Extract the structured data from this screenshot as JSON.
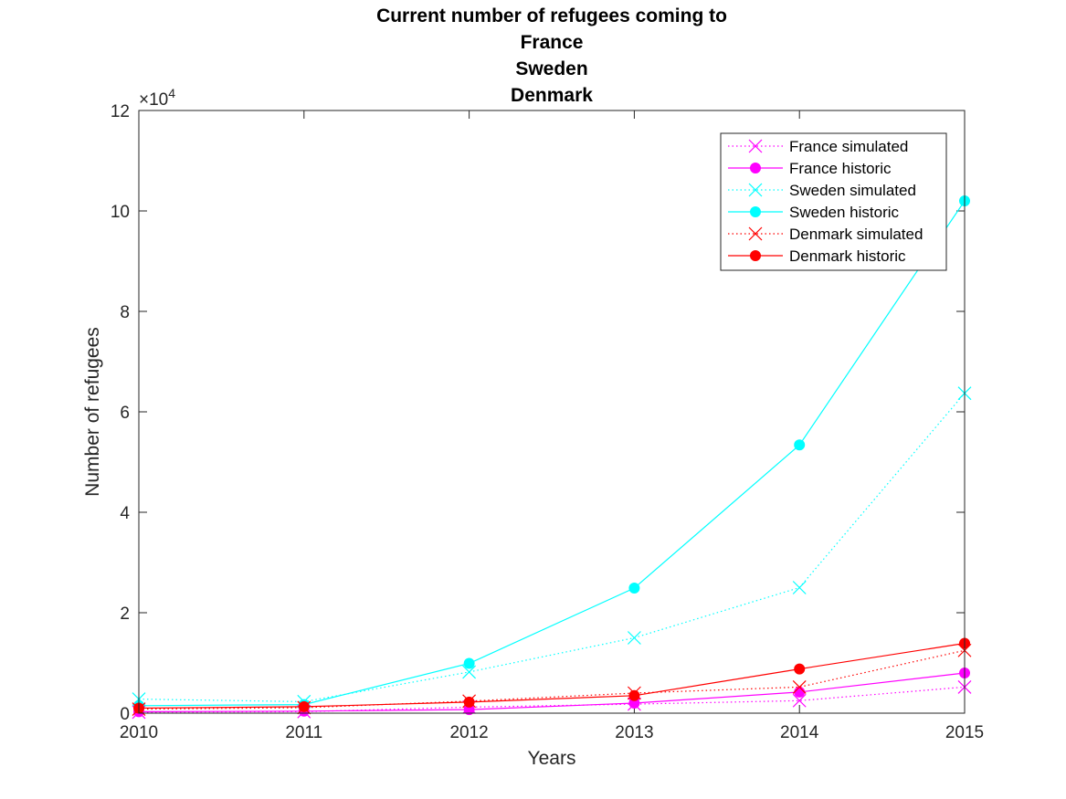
{
  "chart_data": {
    "type": "line",
    "title_lines": [
      "Current number of refugees coming to",
      "France",
      "Sweden",
      "Denmark"
    ],
    "xlabel": "Years",
    "ylabel": "Number of refugees",
    "exponent_label": "×10",
    "exponent_power": "4",
    "x": [
      2010,
      2011,
      2012,
      2013,
      2014,
      2015
    ],
    "xlim": [
      2010,
      2015
    ],
    "ylim": [
      0,
      120000
    ],
    "xticks": [
      2010,
      2011,
      2012,
      2013,
      2014,
      2015
    ],
    "yticks": [
      0,
      20000,
      40000,
      60000,
      80000,
      100000,
      120000
    ],
    "ytick_labels": [
      "0",
      "2",
      "4",
      "6",
      "8",
      "10",
      "12"
    ],
    "legend_position": "top-right",
    "series": [
      {
        "name": "France simulated",
        "color": "#ff00ff",
        "style": "dotted",
        "marker": "x",
        "values": [
          200,
          300,
          1200,
          1800,
          2500,
          5200
        ]
      },
      {
        "name": "France historic",
        "color": "#ff00ff",
        "style": "solid",
        "marker": "o",
        "values": [
          300,
          400,
          700,
          2000,
          4200,
          8000
        ]
      },
      {
        "name": "Sweden simulated",
        "color": "#00ffff",
        "style": "dotted",
        "marker": "x",
        "values": [
          2800,
          2300,
          8200,
          15000,
          25000,
          63700
        ]
      },
      {
        "name": "Sweden historic",
        "color": "#00ffff",
        "style": "solid",
        "marker": "o",
        "values": [
          1500,
          1700,
          9900,
          24900,
          53400,
          102000
        ]
      },
      {
        "name": "Denmark simulated",
        "color": "#ff0000",
        "style": "dotted",
        "marker": "x",
        "values": [
          800,
          1100,
          2400,
          4000,
          5200,
          12500
        ]
      },
      {
        "name": "Denmark historic",
        "color": "#ff0000",
        "style": "solid",
        "marker": "o",
        "values": [
          1000,
          1300,
          2200,
          3500,
          8800,
          13900
        ]
      }
    ]
  }
}
